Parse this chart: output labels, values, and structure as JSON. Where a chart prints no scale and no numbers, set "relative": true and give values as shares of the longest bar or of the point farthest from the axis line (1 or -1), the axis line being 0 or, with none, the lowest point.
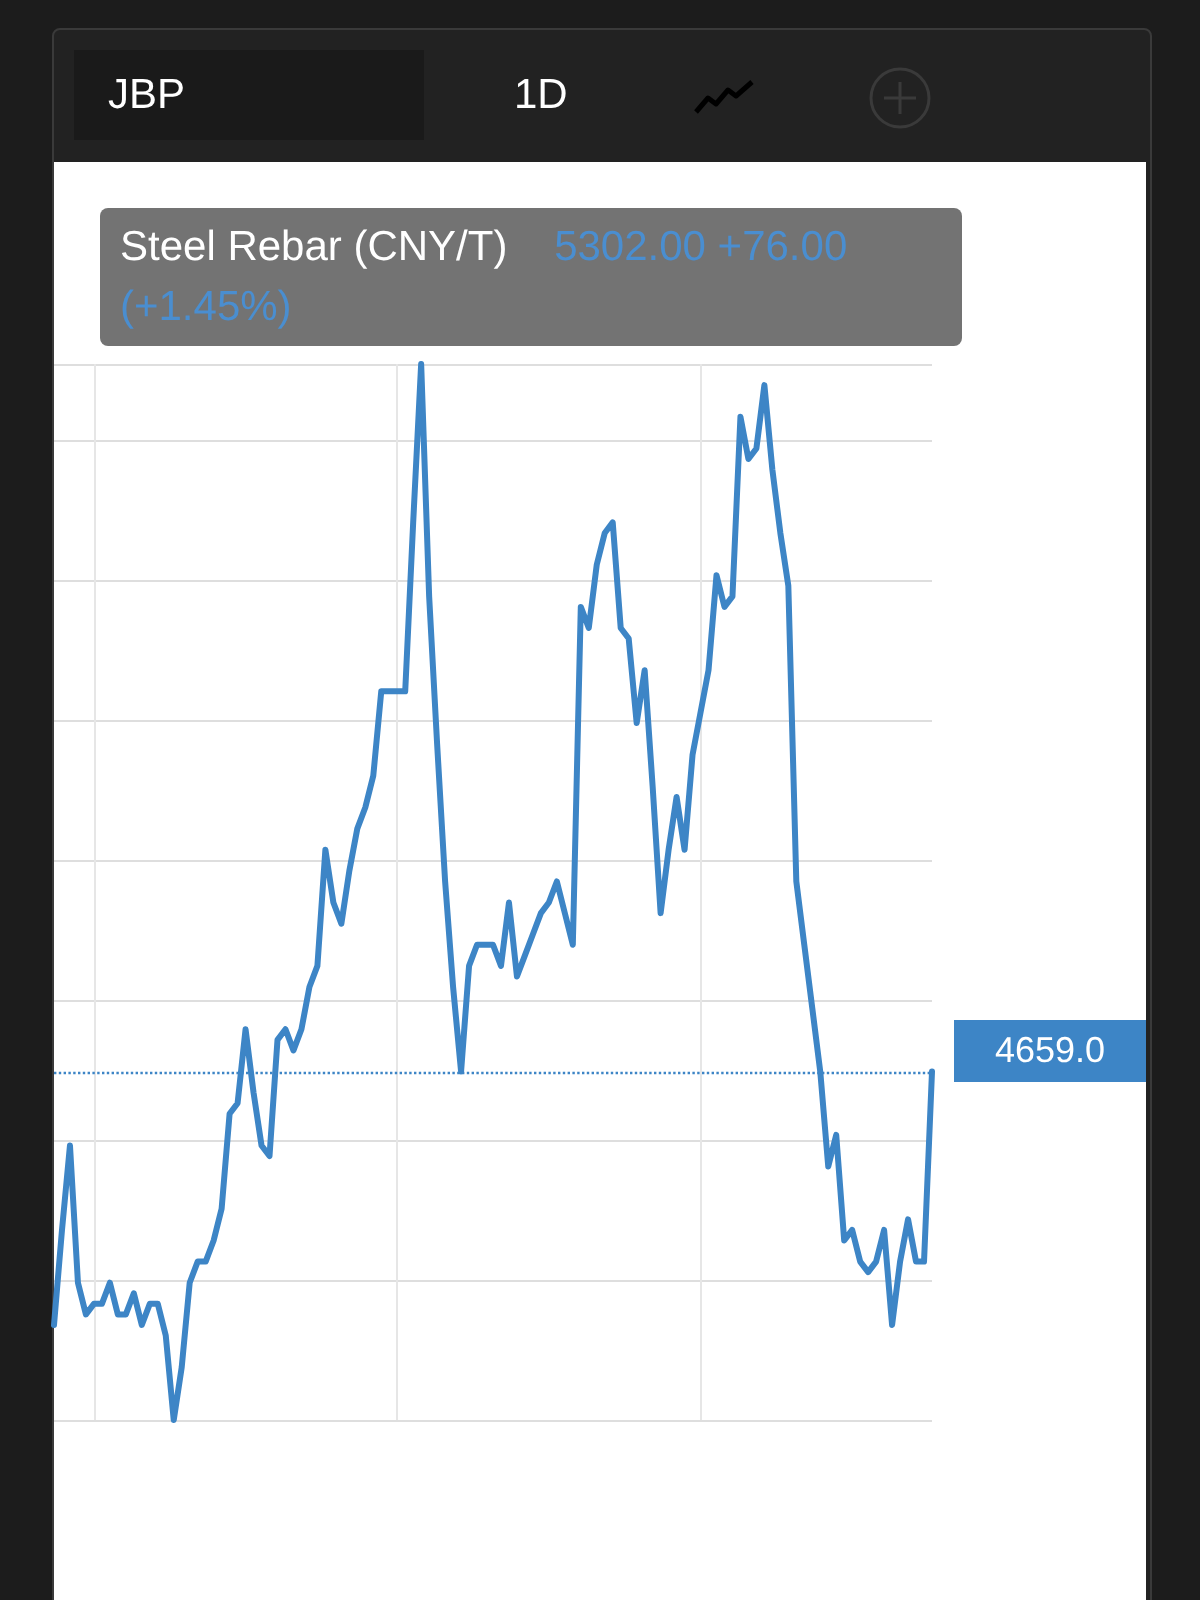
{
  "chart_data": {
    "type": "line",
    "relative": true,
    "grid": true,
    "marker": "none",
    "line_style": "solid",
    "annotations": [
      "JBP",
      "1D",
      "Steel Rebar (CNY/T)",
      "5302.00 +76.00 (+1.45%)",
      "4659.0"
    ],
    "categories": [
      null,
      null,
      null,
      null,
      null,
      null,
      null,
      null,
      null,
      null,
      null,
      null,
      null,
      null,
      null,
      null,
      null,
      null,
      null,
      null,
      null,
      null,
      null,
      null,
      null,
      null,
      null,
      null,
      null,
      null,
      null,
      null,
      null,
      null,
      null,
      null,
      null,
      null,
      null,
      null,
      null,
      null,
      null,
      null,
      null,
      null,
      null,
      null,
      null,
      null,
      null,
      null,
      null,
      null,
      null,
      null,
      null,
      null,
      null,
      null,
      null,
      null,
      null,
      null,
      null,
      null,
      null,
      null,
      null,
      null,
      null,
      null,
      null,
      null,
      null,
      null,
      null,
      null,
      null,
      null,
      null,
      null,
      null,
      null,
      null,
      null,
      null,
      null,
      null,
      null,
      null,
      null,
      null,
      null,
      null,
      null,
      null,
      null,
      null,
      null,
      null,
      null,
      null,
      null,
      null,
      null,
      null,
      null,
      null,
      null,
      null
    ],
    "series": [
      {
        "color": "#3d85c6",
        "values": [
          0.09,
          0.18,
          0.26,
          0.13,
          0.1,
          0.11,
          0.11,
          0.13,
          0.1,
          0.1,
          0.12,
          0.09,
          0.11,
          0.11,
          0.08,
          0,
          0.05,
          0.13,
          0.15,
          0.15,
          0.17,
          0.2,
          0.29,
          0.3,
          0.37,
          0.31,
          0.26,
          0.25,
          0.36,
          0.37,
          0.35,
          0.37,
          0.41,
          0.43,
          0.54,
          0.49,
          0.47,
          0.52,
          0.56,
          0.58,
          0.61,
          0.69,
          0.69,
          0.69,
          0.69,
          0.85,
          1,
          0.78,
          0.64,
          0.51,
          0.41,
          0.33,
          0.43,
          0.45,
          0.45,
          0.45,
          0.43,
          0.49,
          0.42,
          0.44,
          0.46,
          0.48,
          0.49,
          0.51,
          0.48,
          0.45,
          0.77,
          0.75,
          0.81,
          0.84,
          0.85,
          0.75,
          0.74,
          0.66,
          0.71,
          0.6,
          0.48,
          0.54,
          0.59,
          0.54,
          0.63,
          0.67,
          0.71,
          0.8,
          0.77,
          0.78,
          0.95,
          0.91,
          0.92,
          0.98,
          0.9,
          0.84,
          0.79,
          0.51,
          0.45,
          0.39,
          0.33,
          0.24,
          0.27,
          0.17,
          0.18,
          0.15,
          0.14,
          0.15,
          0.18,
          0.09,
          0.15,
          0.19,
          0.15,
          0.15,
          0.33
        ]
      }
    ],
    "ref_lines": [
      {
        "axis": "y",
        "value": 0.33,
        "color": "#3d85c6",
        "line_style": "dotted"
      }
    ]
  }
}
